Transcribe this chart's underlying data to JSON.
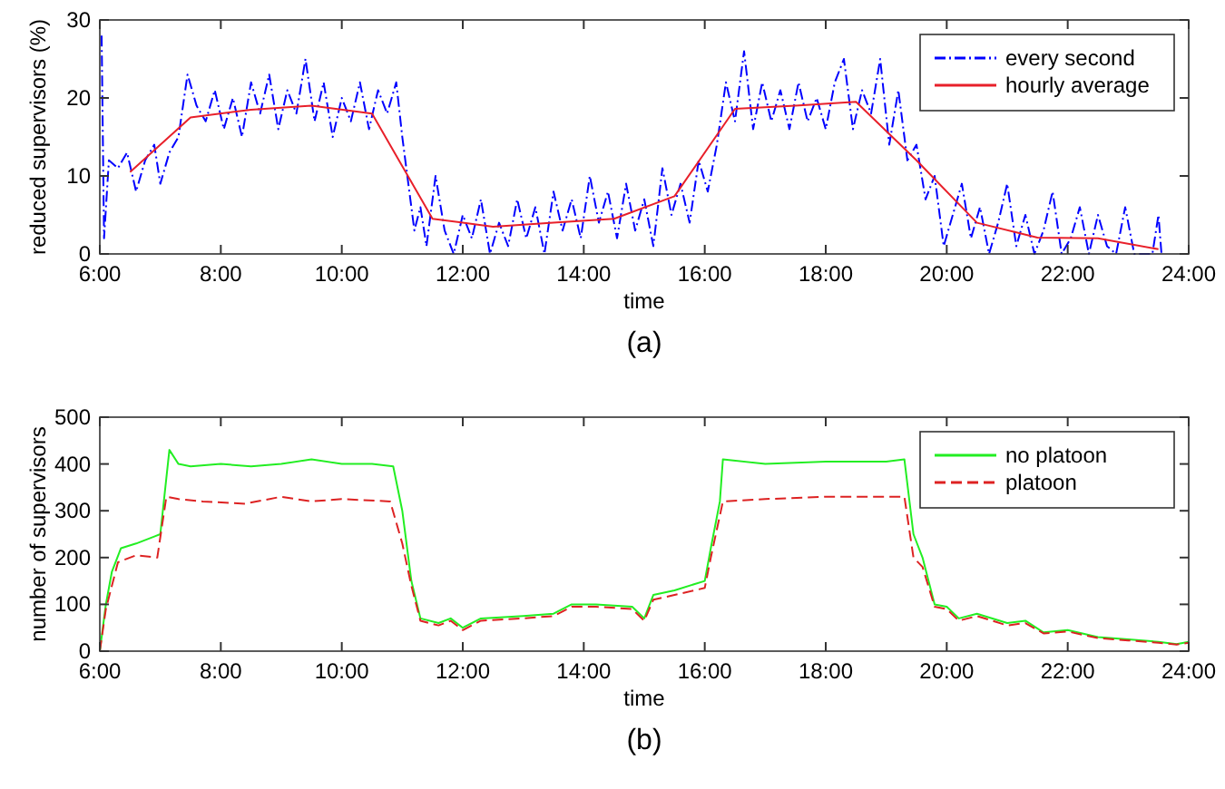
{
  "chart_data": [
    {
      "type": "line",
      "xlabel": "time",
      "ylabel": "reduced supervisors (%)",
      "annotations": [
        "(a)"
      ],
      "legend": "top right",
      "grid": false,
      "xlim": [
        6,
        24
      ],
      "ylim": [
        0,
        30
      ],
      "xticks": [
        {
          "value": 6,
          "label": "6:00"
        },
        {
          "value": 8,
          "label": "8:00"
        },
        {
          "value": 10,
          "label": "10:00"
        },
        {
          "value": 12,
          "label": "12:00"
        },
        {
          "value": 14,
          "label": "14:00"
        },
        {
          "value": 16,
          "label": "16:00"
        },
        {
          "value": 18,
          "label": "18:00"
        },
        {
          "value": 20,
          "label": "20:00"
        },
        {
          "value": 22,
          "label": "22:00"
        },
        {
          "value": 24,
          "label": "24:00"
        }
      ],
      "yticks": [
        0,
        10,
        20,
        30
      ],
      "series": [
        {
          "name": "every second",
          "color": "#0000ff",
          "line_style": "dashdot",
          "x": [
            6.03,
            6.07,
            6.15,
            6.3,
            6.45,
            6.6,
            6.75,
            6.9,
            7.0,
            7.15,
            7.3,
            7.45,
            7.6,
            7.75,
            7.9,
            8.05,
            8.2,
            8.35,
            8.5,
            8.65,
            8.8,
            8.95,
            9.1,
            9.25,
            9.4,
            9.55,
            9.7,
            9.85,
            10.0,
            10.15,
            10.3,
            10.45,
            10.6,
            10.75,
            10.9,
            11.0,
            11.1,
            11.2,
            11.3,
            11.4,
            11.55,
            11.7,
            11.85,
            12.0,
            12.15,
            12.3,
            12.45,
            12.6,
            12.75,
            12.9,
            13.05,
            13.2,
            13.35,
            13.5,
            13.65,
            13.8,
            13.95,
            14.1,
            14.25,
            14.4,
            14.55,
            14.7,
            14.85,
            15.0,
            15.15,
            15.3,
            15.45,
            15.6,
            15.75,
            15.9,
            16.05,
            16.2,
            16.35,
            16.5,
            16.65,
            16.8,
            16.95,
            17.1,
            17.25,
            17.4,
            17.55,
            17.7,
            17.85,
            18.0,
            18.15,
            18.3,
            18.45,
            18.6,
            18.75,
            18.9,
            19.05,
            19.2,
            19.35,
            19.5,
            19.65,
            19.8,
            19.95,
            20.1,
            20.25,
            20.4,
            20.55,
            20.7,
            20.85,
            21.0,
            21.15,
            21.3,
            21.45,
            21.6,
            21.75,
            21.9,
            22.05,
            22.2,
            22.35,
            22.5,
            22.65,
            22.8,
            22.95,
            23.1,
            23.25,
            23.4,
            23.5,
            23.55
          ],
          "values": [
            28,
            2,
            12,
            11,
            13,
            8,
            12,
            14,
            9,
            13,
            15,
            23,
            19,
            17,
            21,
            16,
            20,
            15,
            22,
            18,
            23,
            16,
            21,
            18,
            25,
            17,
            22,
            15,
            20,
            17,
            22,
            16,
            21,
            18,
            22,
            15,
            9,
            3,
            6,
            1,
            10,
            3,
            0,
            5,
            2,
            7,
            0,
            4,
            1,
            7,
            2,
            6,
            0,
            8,
            3,
            7,
            2,
            10,
            4,
            8,
            2,
            9,
            3,
            7,
            1,
            11,
            5,
            9,
            4,
            12,
            8,
            14,
            22,
            17,
            26,
            16,
            22,
            17,
            21,
            16,
            22,
            17,
            20,
            16,
            22,
            25,
            16,
            21,
            18,
            25,
            14,
            21,
            12,
            14,
            7,
            10,
            1,
            5,
            9,
            2,
            6,
            0,
            4,
            9,
            1,
            5,
            0,
            3,
            8,
            0,
            2,
            6,
            0,
            5,
            1,
            0,
            6,
            0,
            0,
            0,
            5,
            0
          ]
        },
        {
          "name": "hourly average",
          "color": "#e8202a",
          "line_style": "solid",
          "x": [
            6.5,
            7.5,
            8.5,
            9.5,
            10.5,
            11.5,
            12.5,
            13.5,
            14.5,
            15.5,
            16.5,
            17.5,
            18.5,
            19.5,
            20.5,
            21.5,
            22.5,
            23.5
          ],
          "values": [
            10.5,
            17.5,
            18.5,
            19,
            18,
            4.5,
            3.5,
            4,
            4.5,
            7.4,
            18.6,
            19,
            19.5,
            12,
            4,
            2.1,
            2,
            0.6
          ]
        }
      ]
    },
    {
      "type": "line",
      "xlabel": "time",
      "ylabel": "number of supervisors",
      "annotations": [
        "(b)"
      ],
      "legend": "top right",
      "grid": false,
      "xlim": [
        6,
        24
      ],
      "ylim": [
        0,
        500
      ],
      "xticks": [
        {
          "value": 6,
          "label": "6:00"
        },
        {
          "value": 8,
          "label": "8:00"
        },
        {
          "value": 10,
          "label": "10:00"
        },
        {
          "value": 12,
          "label": "12:00"
        },
        {
          "value": 14,
          "label": "14:00"
        },
        {
          "value": 16,
          "label": "16:00"
        },
        {
          "value": 18,
          "label": "18:00"
        },
        {
          "value": 20,
          "label": "20:00"
        },
        {
          "value": 22,
          "label": "22:00"
        },
        {
          "value": 24,
          "label": "24:00"
        }
      ],
      "yticks": [
        0,
        100,
        200,
        300,
        400,
        500
      ],
      "series": [
        {
          "name": "no platoon",
          "color": "#22ee22",
          "line_style": "solid",
          "x": [
            6.0,
            6.1,
            6.2,
            6.35,
            6.6,
            6.9,
            7.0,
            7.15,
            7.3,
            7.5,
            8.0,
            8.5,
            9.0,
            9.5,
            10.0,
            10.5,
            10.85,
            11.0,
            11.15,
            11.3,
            11.6,
            11.8,
            12.0,
            12.3,
            13.0,
            13.5,
            13.8,
            14.2,
            14.8,
            15.0,
            15.15,
            15.5,
            16.0,
            16.1,
            16.25,
            16.3,
            17.0,
            18.0,
            19.0,
            19.3,
            19.45,
            19.6,
            19.8,
            20.0,
            20.2,
            20.5,
            21.0,
            21.3,
            21.6,
            22.0,
            22.5,
            23.0,
            23.5,
            23.8,
            24.0
          ],
          "values": [
            0,
            100,
            170,
            220,
            230,
            245,
            250,
            430,
            400,
            395,
            400,
            395,
            400,
            410,
            400,
            400,
            395,
            300,
            150,
            70,
            60,
            70,
            50,
            70,
            75,
            80,
            100,
            100,
            95,
            70,
            120,
            130,
            150,
            220,
            320,
            410,
            400,
            405,
            405,
            410,
            250,
            200,
            100,
            95,
            70,
            80,
            60,
            65,
            40,
            45,
            30,
            25,
            20,
            15,
            20
          ]
        },
        {
          "name": "platoon",
          "color": "#dd2222",
          "line_style": "dashed",
          "x": [
            6.0,
            6.1,
            6.3,
            6.6,
            6.95,
            7.1,
            7.3,
            7.7,
            8.4,
            9.0,
            9.5,
            10.0,
            10.8,
            11.0,
            11.15,
            11.3,
            11.6,
            11.8,
            12.0,
            12.3,
            13.0,
            13.5,
            13.8,
            14.2,
            14.8,
            15.0,
            15.15,
            15.5,
            16.0,
            16.1,
            16.3,
            17.0,
            18.0,
            19.3,
            19.45,
            19.6,
            19.8,
            20.0,
            20.2,
            20.5,
            21.0,
            21.3,
            21.6,
            22.0,
            22.5,
            23.0,
            23.5,
            23.8,
            24.0
          ],
          "values": [
            0,
            90,
            190,
            205,
            200,
            330,
            325,
            320,
            315,
            330,
            320,
            325,
            320,
            230,
            140,
            65,
            55,
            65,
            45,
            65,
            70,
            75,
            95,
            95,
            90,
            65,
            110,
            120,
            135,
            200,
            320,
            325,
            330,
            330,
            200,
            180,
            95,
            90,
            65,
            75,
            55,
            60,
            38,
            42,
            28,
            23,
            18,
            14,
            18
          ]
        }
      ]
    }
  ]
}
